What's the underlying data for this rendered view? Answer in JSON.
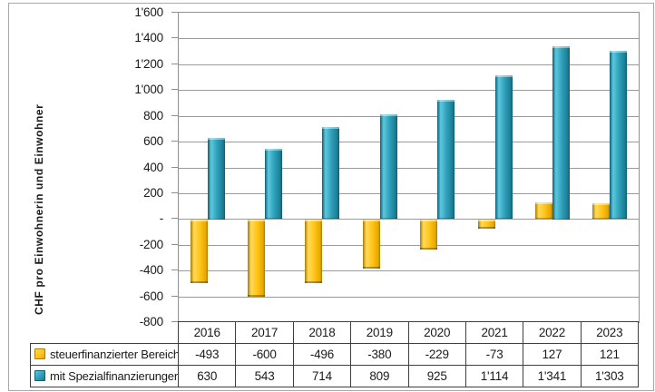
{
  "figure": {
    "y_axis_title": "CHF pro Einwohnerin und Einwohner"
  },
  "chart_data": {
    "type": "bar",
    "title": "",
    "xlabel": "",
    "ylabel": "CHF pro Einwohnerin und Einwohner",
    "categories": [
      "2016",
      "2017",
      "2018",
      "2019",
      "2020",
      "2021",
      "2022",
      "2023"
    ],
    "series": [
      {
        "name": "steuerfinanzierter Bereich",
        "values": [
          -493,
          -600,
          -496,
          -380,
          -229,
          -73,
          127,
          121
        ],
        "labels": [
          "-493",
          "-600",
          "-496",
          "-380",
          "-229",
          "-73",
          "127",
          "121"
        ],
        "fill": {
          "highlight": "#FFD95A",
          "base": "#FFC417",
          "shade": "#E9A800",
          "edge": "#A97C00"
        }
      },
      {
        "name": "mit Spezialfinanzierungen",
        "values": [
          630,
          543,
          714,
          809,
          925,
          1114,
          1341,
          1303
        ],
        "labels": [
          "630",
          "543",
          "714",
          "809",
          "925",
          "1'114",
          "1'341",
          "1'303"
        ],
        "fill": {
          "highlight": "#5BC8DE",
          "base": "#2E9FB8",
          "shade": "#1C7E96",
          "edge": "#0F5D73"
        }
      }
    ],
    "ylim": [
      -800,
      1600
    ],
    "ytick_interval": 200,
    "yticks": [
      {
        "value": 1600,
        "label": "1'600"
      },
      {
        "value": 1400,
        "label": "1'400"
      },
      {
        "value": 1200,
        "label": "1'200"
      },
      {
        "value": 1000,
        "label": "1'000"
      },
      {
        "value": 800,
        "label": "800"
      },
      {
        "value": 600,
        "label": "600"
      },
      {
        "value": 400,
        "label": "400"
      },
      {
        "value": 200,
        "label": "200"
      },
      {
        "value": 0,
        "label": "-"
      },
      {
        "value": -200,
        "label": "-200"
      },
      {
        "value": -400,
        "label": "-400"
      },
      {
        "value": -600,
        "label": "-600"
      },
      {
        "value": -800,
        "label": "-800"
      }
    ],
    "grid": true,
    "gridline_color": "#9A9A9A",
    "plot_border_color": "#8F8F8F",
    "table_border_color": "#3F3F3F",
    "legend_position": "table-left"
  }
}
